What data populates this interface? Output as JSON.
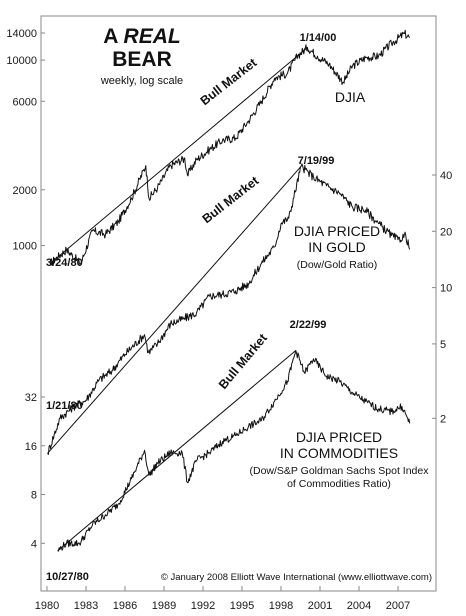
{
  "chart_data": [
    {
      "type": "line",
      "title": "A REAL BEAR",
      "title_line1_plain": "A ",
      "title_line1_italic": "REAL",
      "title_line2": "BEAR",
      "subtitle": "weekly, log scale",
      "series": [
        {
          "name": "DJIA",
          "x": [
            1980.23,
            1981.5,
            1982.6,
            1983.5,
            1984.5,
            1985.5,
            1986.5,
            1987.6,
            1987.85,
            1988.5,
            1989.5,
            1990.6,
            1990.8,
            1991.5,
            1992.5,
            1993.5,
            1994.5,
            1995.5,
            1996.5,
            1997.5,
            1998.5,
            1999.3,
            2000.04,
            2000.8,
            2001.7,
            2002.8,
            2003.5,
            2004.5,
            2005.5,
            2006.5,
            2007.5,
            2007.9
          ],
          "values": [
            800,
            950,
            800,
            1200,
            1150,
            1350,
            1800,
            2700,
            1800,
            2050,
            2700,
            2950,
            2400,
            2900,
            3300,
            3700,
            3800,
            4700,
            6000,
            8000,
            8500,
            10600,
            11700,
            10500,
            9500,
            7600,
            9300,
            10300,
            10500,
            12300,
            13900,
            13200
          ]
        }
      ],
      "y_ticks": [
        1000,
        2000,
        6000,
        10000,
        14000
      ],
      "y_scale": "log",
      "annotations": [
        "3/24/80",
        "1/14/00",
        "Bull Market"
      ]
    },
    {
      "type": "line",
      "series": [
        {
          "name": "DJIA PRICED IN GOLD",
          "x": [
            1980.05,
            1981.0,
            1982.0,
            1983.0,
            1984.0,
            1985.0,
            1986.0,
            1987.5,
            1987.8,
            1988.5,
            1989.5,
            1990.5,
            1991.5,
            1992.5,
            1993.5,
            1994.5,
            1995.5,
            1996.5,
            1997.5,
            1998.0,
            1998.6,
            1999.55,
            2000.5,
            2001.5,
            2002.5,
            2003.5,
            2004.5,
            2005.5,
            2006.5,
            2007.0,
            2007.6,
            2007.9
          ],
          "values": [
            1.3,
            2.0,
            2.3,
            2.5,
            3.2,
            3.6,
            4.4,
            5.6,
            4.5,
            5.0,
            6.4,
            6.8,
            7.3,
            9.0,
            9.2,
            9.6,
            10.5,
            13.5,
            16.5,
            22.0,
            23.5,
            44.5,
            39.0,
            35.0,
            32.0,
            27.0,
            26.0,
            22.0,
            19.0,
            18.0,
            19.0,
            16.0
          ]
        }
      ],
      "y_ticks": [
        2,
        5,
        10,
        20,
        40
      ],
      "y_scale": "log",
      "label_line1": "DJIA PRICED",
      "label_line2": "IN GOLD",
      "note": "(Dow/Gold Ratio)",
      "annotations": [
        "1/21/80",
        "7/19/99",
        "Bull Market"
      ]
    },
    {
      "type": "line",
      "series": [
        {
          "name": "DJIA PRICED IN COMMODITIES",
          "x": [
            1980.82,
            1981.5,
            1982.5,
            1983.5,
            1984.5,
            1985.5,
            1986.5,
            1987.5,
            1987.85,
            1988.5,
            1989.5,
            1990.4,
            1990.8,
            1991.5,
            1992.5,
            1993.5,
            1994.5,
            1995.5,
            1996.5,
            1997.5,
            1998.5,
            1999.14,
            1999.8,
            2000.5,
            2001.5,
            2002.5,
            2003.5,
            2004.5,
            2005.5,
            2006.5,
            2007.3,
            2007.9
          ],
          "values": [
            3.6,
            4.0,
            4.0,
            5.2,
            6.0,
            7.0,
            10.0,
            15.0,
            10.5,
            12.5,
            14.5,
            14.5,
            9.5,
            13.0,
            14.5,
            17.0,
            18.5,
            21.0,
            23.0,
            30.0,
            40.0,
            62.0,
            45.0,
            55.0,
            43.0,
            40.0,
            34.0,
            30.0,
            27.0,
            26.0,
            28.0,
            22.0
          ]
        }
      ],
      "y_ticks": [
        4,
        8,
        16,
        32
      ],
      "y_scale": "log",
      "label_line1": "DJIA PRICED",
      "label_line2": "IN COMMODITIES",
      "note_line1": "(Dow/S&P Goldman Sachs Spot Index",
      "note_line2": "of Commodities Ratio)",
      "annotations": [
        "10/27/80",
        "2/22/99",
        "Bull Market"
      ]
    }
  ],
  "x_ticks": [
    "1980",
    "1983",
    "1986",
    "1989",
    "1992",
    "1995",
    "1998",
    "2001",
    "2004",
    "2007"
  ],
  "copyright": "© January 2008 Elliott Wave International (www.elliottwave.com)",
  "colors": {
    "line": "#111111",
    "frame": "#888888",
    "background": "#ffffff"
  }
}
